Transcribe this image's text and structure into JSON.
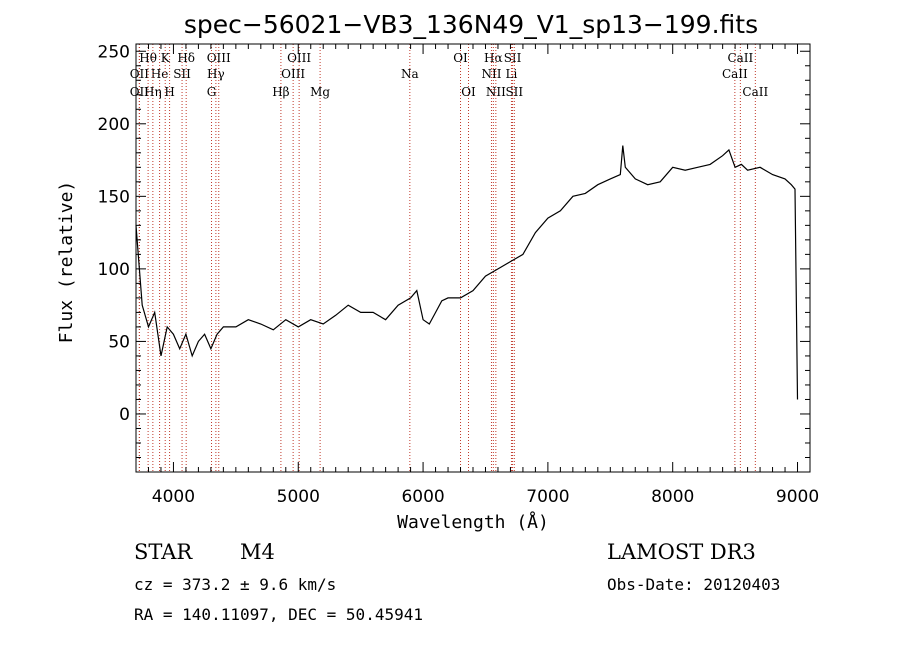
{
  "chart_data": {
    "type": "line",
    "title": "spec−56021−VB3_136N49_V1_sp13−199.fits",
    "xlabel": "Wavelength (Å)",
    "ylabel": "Flux (relative)",
    "xlim": [
      3700,
      9100
    ],
    "ylim": [
      -40,
      255
    ],
    "xticks": [
      4000,
      5000,
      6000,
      7000,
      8000,
      9000
    ],
    "yticks": [
      0,
      50,
      100,
      150,
      200,
      250
    ],
    "grid": false,
    "series": [
      {
        "name": "flux",
        "x": [
          3700,
          3750,
          3800,
          3850,
          3900,
          3950,
          4000,
          4050,
          4100,
          4150,
          4200,
          4250,
          4300,
          4350,
          4400,
          4500,
          4600,
          4700,
          4800,
          4900,
          5000,
          5100,
          5200,
          5300,
          5400,
          5500,
          5600,
          5700,
          5800,
          5900,
          5950,
          6000,
          6050,
          6100,
          6150,
          6200,
          6300,
          6400,
          6500,
          6600,
          6700,
          6800,
          6900,
          7000,
          7100,
          7200,
          7300,
          7400,
          7500,
          7580,
          7600,
          7620,
          7700,
          7800,
          7900,
          8000,
          8100,
          8200,
          8300,
          8400,
          8450,
          8500,
          8550,
          8600,
          8700,
          8800,
          8900,
          8950,
          8980,
          9000
        ],
        "y": [
          130,
          75,
          60,
          70,
          40,
          60,
          55,
          45,
          55,
          40,
          50,
          55,
          45,
          55,
          60,
          60,
          65,
          62,
          58,
          65,
          60,
          65,
          62,
          68,
          75,
          70,
          70,
          65,
          75,
          80,
          85,
          65,
          62,
          70,
          78,
          80,
          80,
          85,
          95,
          100,
          105,
          110,
          125,
          135,
          140,
          150,
          152,
          158,
          162,
          165,
          185,
          170,
          162,
          158,
          160,
          170,
          168,
          170,
          172,
          178,
          182,
          170,
          172,
          168,
          170,
          165,
          162,
          158,
          155,
          10
        ]
      }
    ],
    "annotation_lines": [
      {
        "label": "OΙΙ",
        "wavelength": 3727,
        "row": 3
      },
      {
        "label": "OΙΙ",
        "wavelength": 3727,
        "row": 2
      },
      {
        "label": "Hθ",
        "wavelength": 3797,
        "row": 1
      },
      {
        "label": "He",
        "wavelength": 3889,
        "row": 2
      },
      {
        "label": "Hη",
        "wavelength": 3835,
        "row": 3
      },
      {
        "label": "K",
        "wavelength": 3934,
        "row": 1
      },
      {
        "label": "H",
        "wavelength": 3969,
        "row": 3
      },
      {
        "label": "SII",
        "wavelength": 4069,
        "row": 2
      },
      {
        "label": "Hδ",
        "wavelength": 4102,
        "row": 1
      },
      {
        "label": "OIII",
        "wavelength": 4363,
        "row": 1
      },
      {
        "label": "Hγ",
        "wavelength": 4340,
        "row": 2
      },
      {
        "label": "G",
        "wavelength": 4305,
        "row": 3
      },
      {
        "label": "Hβ",
        "wavelength": 4861,
        "row": 3
      },
      {
        "label": "OIII",
        "wavelength": 4959,
        "row": 2
      },
      {
        "label": "OIII",
        "wavelength": 5007,
        "row": 1
      },
      {
        "label": "Mg",
        "wavelength": 5175,
        "row": 3
      },
      {
        "label": "Na",
        "wavelength": 5894,
        "row": 2
      },
      {
        "label": "OI",
        "wavelength": 6300,
        "row": 1
      },
      {
        "label": "OI",
        "wavelength": 6364,
        "row": 3
      },
      {
        "label": "Hα",
        "wavelength": 6563,
        "row": 1
      },
      {
        "label": "NII",
        "wavelength": 6548,
        "row": 2
      },
      {
        "label": "NII",
        "wavelength": 6583,
        "row": 3
      },
      {
        "label": "SII",
        "wavelength": 6717,
        "row": 1
      },
      {
        "label": "Li",
        "wavelength": 6708,
        "row": 2
      },
      {
        "label": "SII",
        "wavelength": 6731,
        "row": 3
      },
      {
        "label": "CaII",
        "wavelength": 8542,
        "row": 1
      },
      {
        "label": "CaII",
        "wavelength": 8498,
        "row": 2
      },
      {
        "label": "CaII",
        "wavelength": 8662,
        "row": 3
      }
    ],
    "line_color": "#000000",
    "annotation_color": "#c0392b"
  },
  "info": {
    "class": "STAR",
    "subclass": "M4",
    "survey": "LAMOST DR3",
    "cz": "cz = 373.2 ± 9.6 km/s",
    "obs_date": "Obs-Date: 20120403",
    "radec": "RA = 140.11097, DEC =  50.45941"
  }
}
